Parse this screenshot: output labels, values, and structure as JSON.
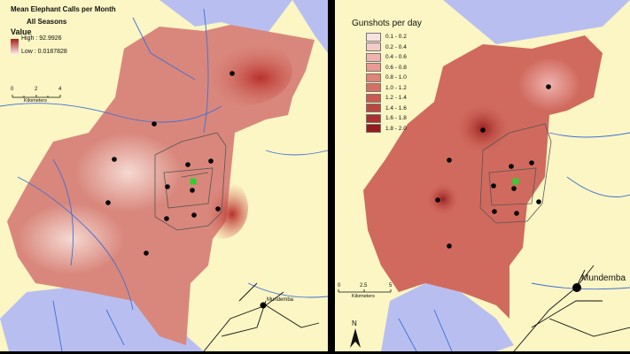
{
  "left_map": {
    "title": "Mean Elephant Calls per Month",
    "subtitle": "All Seasons",
    "legend_title": "Value",
    "legend_high": "High : 92.9926",
    "legend_low": "Low : 0.0187828",
    "legend_colors": [
      "#a31c1c",
      "#fbeaea"
    ],
    "scale_ticks": [
      "0",
      "2",
      "4"
    ],
    "scale_unit": "Kilometers",
    "town_label": "Mundemba"
  },
  "right_map": {
    "legend_title": "Gunshots per day",
    "legend_classes": [
      {
        "label": "0.1 - 0.2",
        "color": "#f9e1e1"
      },
      {
        "label": "0.2 - 0.4",
        "color": "#f4caca"
      },
      {
        "label": "0.4 - 0.6",
        "color": "#efb2ae"
      },
      {
        "label": "0.6 - 0.8",
        "color": "#e99a93"
      },
      {
        "label": "0.8 - 1.0",
        "color": "#e08478"
      },
      {
        "label": "1.0 - 1.2",
        "color": "#d66f63"
      },
      {
        "label": "1.2 - 1.4",
        "color": "#c95a50"
      },
      {
        "label": "1.4 - 1.6",
        "color": "#ba4640"
      },
      {
        "label": "1.6 - 1.8",
        "color": "#a83030"
      },
      {
        "label": "1.8 - 2.0",
        "color": "#951a1e"
      }
    ],
    "scale_ticks": [
      "0",
      "2.5",
      "5"
    ],
    "scale_unit": "Kilometers",
    "north_label": "N",
    "town_label": "Mundemba"
  },
  "colors": {
    "land": "#fbf6c4",
    "water_area": "#b8bff0",
    "river": "#3e6fd6",
    "marker": "#000000",
    "camp": "#33cc33"
  }
}
